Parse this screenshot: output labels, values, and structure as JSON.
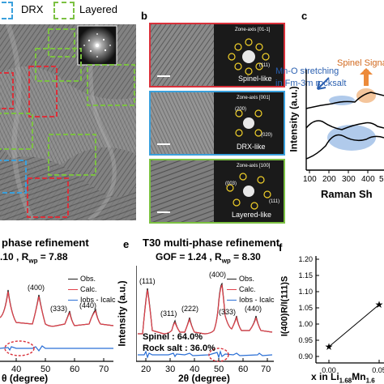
{
  "legend": {
    "drx": {
      "label": "DRX",
      "color": "#3aa0dc"
    },
    "layered": {
      "label": "Layered",
      "color": "#7cc142"
    },
    "spinel_color": "#d9303a"
  },
  "panel_b": {
    "letter": "b",
    "rows": [
      {
        "zone": "Zone-axis [01-1]",
        "caption": "Spinel-like",
        "color": "#d9303a",
        "spots": [
          "(111)"
        ]
      },
      {
        "zone": "Zone-axis [001]",
        "caption": "DRX-like",
        "color": "#3aa0dc",
        "spots": [
          "(200)",
          "(020)"
        ]
      },
      {
        "zone": "Zone-axis [100]",
        "caption": "Layered-like",
        "color": "#7cc142",
        "spots": [
          "(003)",
          "(111)"
        ]
      }
    ]
  },
  "panel_c": {
    "letter": "c",
    "annotation_left_1": "Mn-O stretching",
    "annotation_left_2": "in Fm-3m rocksalt",
    "annotation_right": "Spinel Signal",
    "ylabel": "Intensity (a.u.)",
    "xlabel": "Raman Sh",
    "ticks": [
      "100",
      "200",
      "300",
      "400",
      "5"
    ]
  },
  "panel_d": {
    "title": "phase refinement",
    "stats": ".10 , R",
    "stats_sub": "wp",
    "stats_tail": " = 7.88",
    "peaks": [
      "(400)",
      "(333)",
      "(440)"
    ],
    "legend": [
      "Obs.",
      "Calc.",
      "Iobs - Icalc"
    ],
    "xlabel": "θ (degree)",
    "ticks": [
      "40",
      "50",
      "60",
      "70"
    ]
  },
  "panel_e": {
    "letter": "e",
    "title": "T30 multi-phase refinement",
    "stats": "GOF = 1.24 , R",
    "stats_sub": "wp",
    "stats_tail": " = 8.30",
    "peaks": [
      "(111)",
      "(311)",
      "(222)",
      "(400)",
      "(333)",
      "(440)"
    ],
    "legend": [
      "Obs.",
      "Calc.",
      "Iobs - Icalc"
    ],
    "phase_spinel": "Spinel : 64.0%",
    "phase_rocksalt": "Rock salt : 36.0%",
    "ylabel": "Intensity (a.u.)",
    "xlabel": "2θ (degree)",
    "ticks": [
      "20",
      "30",
      "40",
      "50",
      "60",
      "70"
    ],
    "colors": {
      "obs": "#222222",
      "calc": "#e0404a",
      "diff": "#2a6fd6"
    }
  },
  "panel_f": {
    "letter": "f",
    "ylabel": "I(400)R/I(111)S",
    "xlabel": "x in Li",
    "xlabel_sub": "1.68",
    "xlabel_tail": "Mn",
    "xlabel_sub2": "1.6",
    "yticks": [
      "1.20",
      "1.15",
      "1.10",
      "1.05",
      "1.00",
      "0.95",
      "0.90"
    ],
    "xticks": [
      "0.00",
      "0.05"
    ]
  },
  "chart_data": [
    {
      "type": "scatter",
      "xlabel": "x in Li1.68Mn1.6",
      "ylabel": "I(400)R/I(111)S",
      "x": [
        0.0,
        0.05
      ],
      "y": [
        0.93,
        1.06
      ],
      "ylim": [
        0.88,
        1.21
      ],
      "xticks": [
        0.0,
        0.05
      ],
      "yticks": [
        0.9,
        0.95,
        1.0,
        1.05,
        1.1,
        1.15,
        1.2
      ],
      "grid": false
    }
  ]
}
